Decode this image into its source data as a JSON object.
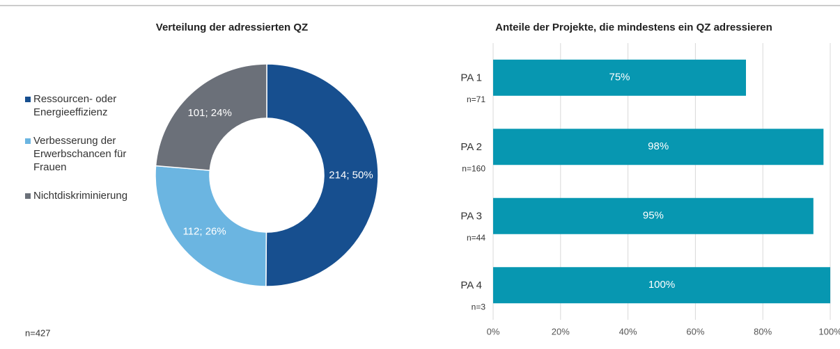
{
  "chart_data": [
    {
      "type": "donut",
      "title": "Verteilung der adressierten QZ",
      "categories": [
        "Ressourcen- oder Energieeffizienz",
        "Verbesserung der Erwerbschancen für Frauen",
        "Nichtdiskriminierung"
      ],
      "values": [
        214,
        112,
        101
      ],
      "value_labels": [
        "214; 50%",
        "112; 26%",
        "101; 24%"
      ],
      "colors": [
        "#174f8f",
        "#6bb5e1",
        "#6b7079"
      ],
      "legend": "left",
      "note": "n=427"
    },
    {
      "type": "bar",
      "orientation": "horizontal",
      "title": "Anteile der Projekte, die mindestens ein QZ adressieren",
      "categories": [
        "PA 1",
        "PA 2",
        "PA 3",
        "PA 4"
      ],
      "annotations": [
        "n=71",
        "n=160",
        "n=44",
        "n=3"
      ],
      "values": [
        75,
        98,
        95,
        100
      ],
      "value_labels": [
        "75%",
        "98%",
        "95%",
        "100%"
      ],
      "color": "#0797b1",
      "xlim": [
        0,
        100
      ],
      "xticks": [
        {
          "value": 0,
          "label": "0%"
        },
        {
          "value": 20,
          "label": "20%"
        },
        {
          "value": 40,
          "label": "40%"
        },
        {
          "value": 60,
          "label": "60%"
        },
        {
          "value": 80,
          "label": "80%"
        },
        {
          "value": 100,
          "label": "100%"
        }
      ],
      "grid": true
    }
  ]
}
